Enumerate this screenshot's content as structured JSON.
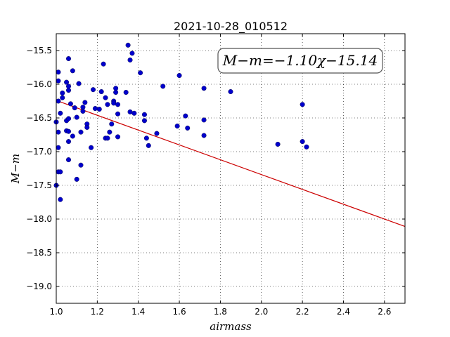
{
  "chart_data": {
    "type": "scatter",
    "title": "2021-10-28_010512",
    "xlabel": "airmass",
    "ylabel": "M−m",
    "xlim": [
      1.0,
      2.7
    ],
    "ylim": [
      -19.25,
      -15.25
    ],
    "grid": true,
    "x_ticks": [
      1.0,
      1.2,
      1.4,
      1.6,
      1.8,
      2.0,
      2.2,
      2.4,
      2.6
    ],
    "x_tick_labels": [
      "1.0",
      "1.2",
      "1.4",
      "1.6",
      "1.8",
      "2.0",
      "2.2",
      "2.4",
      "2.6"
    ],
    "y_ticks": [
      -15.5,
      -16.0,
      -16.5,
      -17.0,
      -17.5,
      -18.0,
      -18.5,
      -19.0
    ],
    "y_tick_labels": [
      "−15.5",
      "−16.0",
      "−16.5",
      "−17.0",
      "−17.5",
      "−18.0",
      "−18.5",
      "−19.0"
    ],
    "annotation": "M−m=−1.10χ−15.14",
    "point_color": "#0000cc",
    "line_color": "#cc0000",
    "fit": {
      "slope": -1.1,
      "intercept": -15.14,
      "x_range": [
        1.0,
        2.7
      ]
    },
    "points": [
      [
        1.0,
        -16.56
      ],
      [
        1.0,
        -17.5
      ],
      [
        1.01,
        -15.82
      ],
      [
        1.01,
        -15.95
      ],
      [
        1.01,
        -16.25
      ],
      [
        1.01,
        -16.71
      ],
      [
        1.01,
        -16.94
      ],
      [
        1.01,
        -17.3
      ],
      [
        1.02,
        -16.43
      ],
      [
        1.02,
        -17.3
      ],
      [
        1.02,
        -17.71
      ],
      [
        1.03,
        -16.13
      ],
      [
        1.03,
        -16.2
      ],
      [
        1.05,
        -15.97
      ],
      [
        1.05,
        -16.54
      ],
      [
        1.05,
        -16.69
      ],
      [
        1.06,
        -15.62
      ],
      [
        1.06,
        -16.03
      ],
      [
        1.06,
        -16.09
      ],
      [
        1.06,
        -16.51
      ],
      [
        1.06,
        -16.7
      ],
      [
        1.06,
        -16.85
      ],
      [
        1.06,
        -17.12
      ],
      [
        1.07,
        -16.29
      ],
      [
        1.08,
        -15.8
      ],
      [
        1.08,
        -16.77
      ],
      [
        1.09,
        -16.35
      ],
      [
        1.1,
        -16.49
      ],
      [
        1.1,
        -17.41
      ],
      [
        1.11,
        -15.99
      ],
      [
        1.12,
        -16.71
      ],
      [
        1.12,
        -17.2
      ],
      [
        1.13,
        -16.34
      ],
      [
        1.13,
        -16.4
      ],
      [
        1.14,
        -16.27
      ],
      [
        1.15,
        -16.59
      ],
      [
        1.15,
        -16.64
      ],
      [
        1.17,
        -16.94
      ],
      [
        1.18,
        -16.08
      ],
      [
        1.19,
        -16.36
      ],
      [
        1.21,
        -16.37
      ],
      [
        1.22,
        -16.11
      ],
      [
        1.23,
        -15.7
      ],
      [
        1.24,
        -16.2
      ],
      [
        1.24,
        -16.8
      ],
      [
        1.25,
        -16.3
      ],
      [
        1.25,
        -16.8
      ],
      [
        1.26,
        -16.71
      ],
      [
        1.27,
        -16.59
      ],
      [
        1.28,
        -16.25
      ],
      [
        1.28,
        -16.28
      ],
      [
        1.29,
        -16.06
      ],
      [
        1.29,
        -16.12
      ],
      [
        1.3,
        -16.3
      ],
      [
        1.3,
        -16.44
      ],
      [
        1.3,
        -16.78
      ],
      [
        1.34,
        -16.12
      ],
      [
        1.35,
        -15.42
      ],
      [
        1.36,
        -16.41
      ],
      [
        1.36,
        -15.64
      ],
      [
        1.37,
        -15.54
      ],
      [
        1.38,
        -16.43
      ],
      [
        1.41,
        -15.83
      ],
      [
        1.43,
        -16.45
      ],
      [
        1.43,
        -16.54
      ],
      [
        1.44,
        -16.8
      ],
      [
        1.45,
        -16.91
      ],
      [
        1.49,
        -16.73
      ],
      [
        1.52,
        -16.03
      ],
      [
        1.59,
        -16.62
      ],
      [
        1.6,
        -15.87
      ],
      [
        1.63,
        -16.47
      ],
      [
        1.64,
        -16.65
      ],
      [
        1.72,
        -16.76
      ],
      [
        1.72,
        -16.06
      ],
      [
        1.72,
        -16.53
      ],
      [
        1.85,
        -16.11
      ],
      [
        2.08,
        -16.89
      ],
      [
        2.2,
        -16.3
      ],
      [
        2.2,
        -16.85
      ],
      [
        2.22,
        -16.93
      ]
    ]
  }
}
